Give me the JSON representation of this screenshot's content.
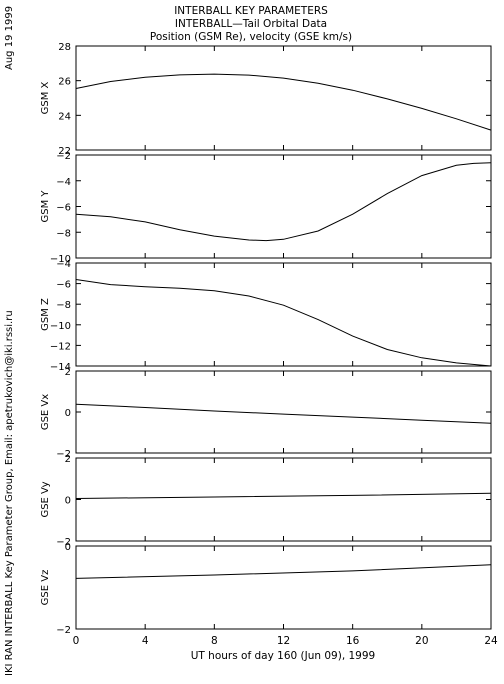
{
  "header": {
    "date": "Aug 19 1999",
    "credit": "IKI RAN INTERBALL Key Parameter Group, Email: apetrukovich@iki.rssi.ru",
    "title_lines": [
      "INTERBALL KEY PARAMETERS",
      "INTERBALL—Tail Orbital Data",
      "Position (GSM Re), velocity (GSE km/s)"
    ]
  },
  "chart_data": {
    "type": "line",
    "title": "INTERBALL KEY PARAMETERS",
    "subtitle": "INTERBALL—Tail Orbital Data / Position (GSM Re), velocity (GSE km/s)",
    "xlabel": "UT hours of day 160 (Jun 09), 1999",
    "xlim": [
      0,
      24
    ],
    "xticks": [
      0,
      4,
      8,
      12,
      16,
      20,
      24
    ],
    "xtick_labels": [
      "0",
      "4",
      "8",
      "12",
      "16",
      "20",
      "24"
    ],
    "grid": false,
    "panels": [
      {
        "ylabel": "GSM X",
        "ylim": [
          22,
          28
        ],
        "yticks": [
          22,
          24,
          26,
          28
        ],
        "ytick_labels": [
          "22",
          "24",
          "26",
          "28"
        ],
        "series": [
          {
            "x": [
              0,
              2,
              4,
              6,
              8,
              10,
              12,
              14,
              16,
              18,
              20,
              22,
              24
            ],
            "y": [
              25.55,
              25.95,
              26.2,
              26.33,
              26.38,
              26.32,
              26.15,
              25.85,
              25.45,
              24.95,
              24.4,
              23.8,
              23.15
            ]
          }
        ]
      },
      {
        "ylabel": "GSM Y",
        "ylim": [
          -10,
          -2
        ],
        "yticks": [
          -10,
          -8,
          -6,
          -4,
          -2
        ],
        "ytick_labels": [
          "−10",
          "−8",
          "−6",
          "−4",
          "−2"
        ],
        "series": [
          {
            "x": [
              0,
              2,
              4,
              6,
              8,
              10,
              11,
              12,
              14,
              16,
              18,
              20,
              22,
              23,
              24
            ],
            "y": [
              -6.6,
              -6.8,
              -7.2,
              -7.8,
              -8.3,
              -8.6,
              -8.65,
              -8.55,
              -7.9,
              -6.6,
              -5.0,
              -3.6,
              -2.8,
              -2.65,
              -2.6
            ]
          }
        ]
      },
      {
        "ylabel": "GSM Z",
        "ylim": [
          -14,
          -4
        ],
        "yticks": [
          -14,
          -12,
          -10,
          -8,
          -6,
          -4
        ],
        "ytick_labels": [
          "−14",
          "−12",
          "−10",
          "−8",
          "−6",
          "−4"
        ],
        "series": [
          {
            "x": [
              0,
              2,
              4,
              6,
              8,
              10,
              12,
              14,
              16,
              18,
              20,
              22,
              24
            ],
            "y": [
              -5.6,
              -6.1,
              -6.3,
              -6.45,
              -6.7,
              -7.2,
              -8.1,
              -9.5,
              -11.1,
              -12.4,
              -13.2,
              -13.7,
              -14.0
            ]
          }
        ]
      },
      {
        "ylabel": "GSE Vx",
        "ylim": [
          -2,
          2
        ],
        "yticks": [
          -2,
          0,
          2
        ],
        "ytick_labels": [
          "−2",
          "0",
          "2"
        ],
        "series": [
          {
            "x": [
              0,
              4,
              8,
              12,
              16,
              20,
              24
            ],
            "y": [
              0.38,
              0.22,
              0.05,
              -0.1,
              -0.25,
              -0.4,
              -0.55
            ]
          }
        ]
      },
      {
        "ylabel": "GSE Vy",
        "ylim": [
          -2,
          2
        ],
        "yticks": [
          -2,
          0,
          2
        ],
        "ytick_labels": [
          "−2",
          "0",
          "2"
        ],
        "series": [
          {
            "x": [
              0,
              8,
              16,
              24
            ],
            "y": [
              0.05,
              0.12,
              0.2,
              0.3
            ]
          }
        ]
      },
      {
        "ylabel": "GSE Vz",
        "ylim": [
          -2,
          0
        ],
        "yticks": [
          -2,
          0
        ],
        "ytick_labels": [
          "−2",
          "0"
        ],
        "series": [
          {
            "x": [
              0,
              8,
              16,
              24
            ],
            "y": [
              -0.78,
              -0.7,
              -0.6,
              -0.45
            ]
          }
        ]
      }
    ]
  }
}
